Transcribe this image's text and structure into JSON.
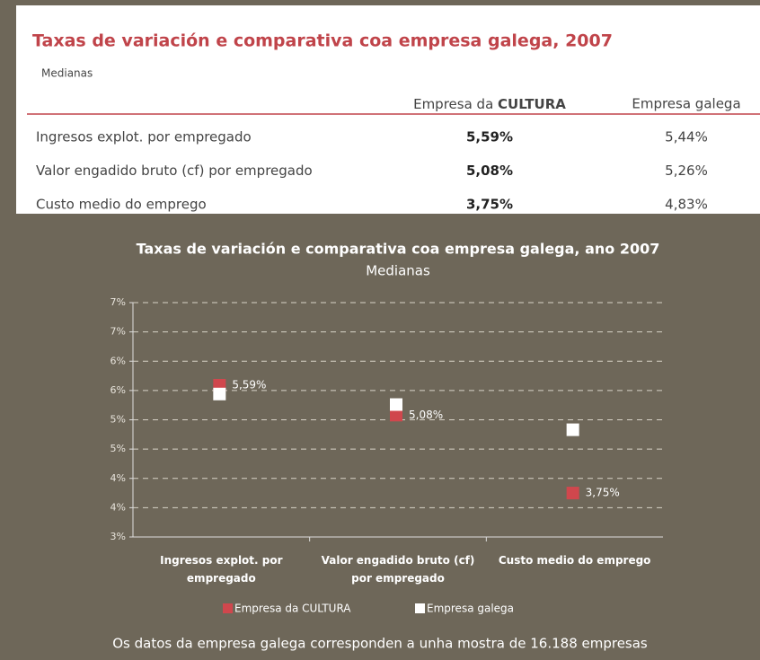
{
  "header": {
    "title": "Taxas de variación e comparativa coa empresa galega, 2007",
    "subtitle": "Medianas"
  },
  "table": {
    "columns": [
      {
        "text": "Empresa da",
        "bold": "CULTURA"
      },
      "Empresa galega"
    ],
    "rows": [
      [
        "Ingresos explot. por empregado",
        "5,59%",
        "5,44%"
      ],
      [
        "Valor engadido bruto (cf) por empregado",
        "5,08%",
        "5,26%"
      ],
      [
        "Custo medio do emprego",
        "3,75%",
        "4,83%"
      ]
    ]
  },
  "chart_data": {
    "type": "scatter",
    "title": "Taxas de variación e comparativa coa empresa galega, ano 2007",
    "subtitle": "Medianas",
    "categories": [
      [
        "Ingresos explot. por",
        "empregado"
      ],
      [
        "Valor engadido bruto (cf)",
        "por empregado"
      ],
      [
        "Custo medio do emprego"
      ]
    ],
    "series": [
      {
        "name": "Empresa da CULTURA",
        "color": "#d0474d",
        "values": [
          5.59,
          5.08,
          3.75
        ],
        "value_labels": [
          "5,59%",
          "5,08%",
          "3,75%"
        ]
      },
      {
        "name": "Empresa galega",
        "color": "#ffffff",
        "values": [
          5.44,
          5.26,
          4.83
        ]
      }
    ],
    "ylim": [
      3,
      7
    ],
    "yticks": [
      {
        "value": 3,
        "label": "3%"
      },
      {
        "value": 3.5,
        "label": "4%"
      },
      {
        "value": 4,
        "label": "4%"
      },
      {
        "value": 4.5,
        "label": "5%"
      },
      {
        "value": 5,
        "label": "5%"
      },
      {
        "value": 5.5,
        "label": "6%"
      },
      {
        "value": 6,
        "label": "6%"
      },
      {
        "value": 6.5,
        "label": "7%"
      },
      {
        "value": 7,
        "label": "7%"
      }
    ],
    "grid": true,
    "legend": "bottom"
  },
  "footnote": "Os datos da empresa galega corresponden a unha mostra de 16.188 empresas"
}
